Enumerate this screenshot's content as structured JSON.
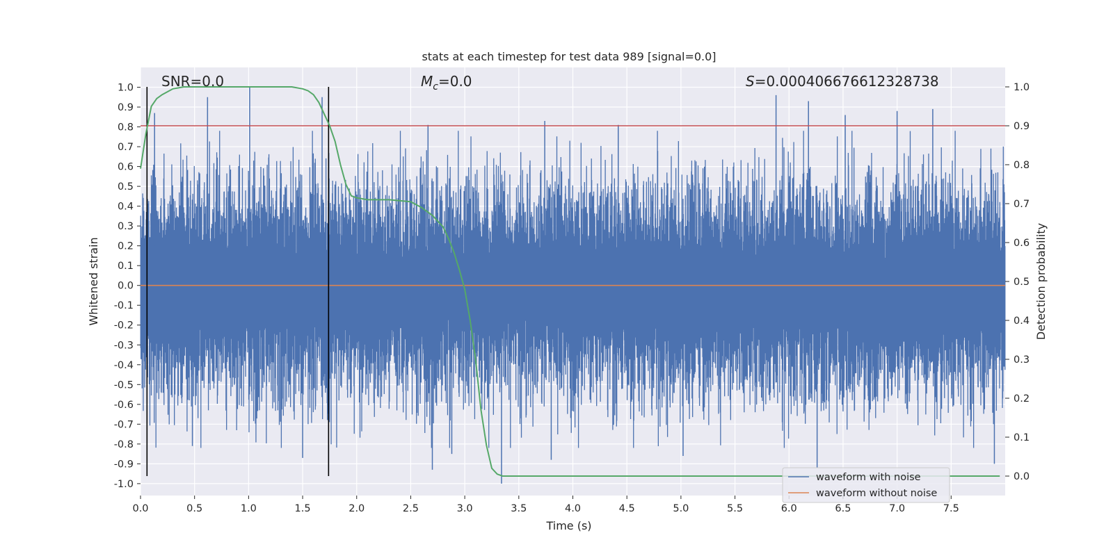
{
  "chart_data": {
    "type": "line",
    "title": "stats at each timestep for test data 989 [signal=0.0]",
    "xlabel": "Time (s)",
    "ylabel": "Whitened strain",
    "y2label": "Detection probability",
    "xlim": [
      0.0,
      8.0
    ],
    "ylim": [
      -1.06,
      1.1
    ],
    "y2lim": [
      -0.05,
      1.05
    ],
    "xticks": [
      "0.0",
      "0.5",
      "1.0",
      "1.5",
      "2.0",
      "2.5",
      "3.0",
      "3.5",
      "4.0",
      "4.5",
      "5.0",
      "5.5",
      "6.0",
      "6.5",
      "7.0",
      "7.5"
    ],
    "yticks": [
      "1.0",
      "0.9",
      "0.8",
      "0.7",
      "0.6",
      "0.5",
      "0.4",
      "0.3",
      "0.2",
      "0.1",
      "0.0",
      "-0.1",
      "-0.2",
      "-0.3",
      "-0.4",
      "-0.5",
      "-0.6",
      "-0.7",
      "-0.8",
      "-0.9",
      "-1.0"
    ],
    "y2ticks": [
      "1.0",
      "0.9",
      "0.8",
      "0.7",
      "0.6",
      "0.5",
      "0.4",
      "0.3",
      "0.2",
      "0.1",
      "0.0"
    ],
    "annotations": {
      "snr": "SNR=0.0",
      "mc_symbol": "M",
      "mc_sub": "c",
      "mc_value": "=0.0",
      "s_symbol": "S",
      "s_value": "=0.000406676612328738"
    },
    "threshold_y2": 0.9,
    "vertical_markers_x": [
      0.06,
      1.74
    ],
    "series": [
      {
        "name": "waveform with noise",
        "color": "#4c72b0",
        "peaks_max": [
          {
            "x": 0.62,
            "y": 0.95
          },
          {
            "x": 1.01,
            "y": 1.0
          },
          {
            "x": 1.68,
            "y": 0.95
          },
          {
            "x": 0.13,
            "y": 0.87
          },
          {
            "x": 2.66,
            "y": 0.81
          },
          {
            "x": 3.74,
            "y": 0.83
          },
          {
            "x": 4.42,
            "y": 0.81
          },
          {
            "x": 5.88,
            "y": 0.96
          },
          {
            "x": 6.18,
            "y": 0.93
          },
          {
            "x": 6.52,
            "y": 0.86
          },
          {
            "x": 7.0,
            "y": 0.88
          },
          {
            "x": 7.33,
            "y": 0.89
          }
        ],
        "peaks_min": [
          {
            "x": 0.48,
            "y": -0.81
          },
          {
            "x": 1.5,
            "y": -0.87
          },
          {
            "x": 2.7,
            "y": -0.93
          },
          {
            "x": 2.88,
            "y": -0.85
          },
          {
            "x": 3.34,
            "y": -1.0
          },
          {
            "x": 3.8,
            "y": -0.88
          },
          {
            "x": 5.02,
            "y": -0.86
          },
          {
            "x": 6.26,
            "y": -0.92
          },
          {
            "x": 7.9,
            "y": -0.9
          }
        ]
      },
      {
        "name": "waveform without noise",
        "color": "#dd8452",
        "x": [
          0.0,
          8.0
        ],
        "y": [
          0.0,
          0.0
        ]
      },
      {
        "name": "detection probability",
        "color": "#55a868",
        "axis": "y2",
        "x": [
          0.0,
          0.05,
          0.1,
          0.15,
          0.2,
          0.3,
          0.4,
          0.6,
          1.0,
          1.4,
          1.5,
          1.55,
          1.6,
          1.65,
          1.7,
          1.75,
          1.8,
          1.85,
          1.9,
          1.95,
          2.0,
          2.1,
          2.3,
          2.5,
          2.6,
          2.7,
          2.8,
          2.85,
          2.9,
          2.95,
          3.0,
          3.05,
          3.1,
          3.15,
          3.2,
          3.25,
          3.3,
          3.35,
          3.4,
          3.5,
          4.0,
          5.0,
          6.0,
          7.0,
          7.95
        ],
        "y": [
          0.79,
          0.88,
          0.95,
          0.97,
          0.98,
          0.995,
          1.0,
          1.0,
          1.0,
          1.0,
          0.995,
          0.99,
          0.98,
          0.96,
          0.93,
          0.9,
          0.86,
          0.8,
          0.75,
          0.72,
          0.715,
          0.71,
          0.71,
          0.705,
          0.69,
          0.67,
          0.64,
          0.61,
          0.575,
          0.53,
          0.48,
          0.4,
          0.3,
          0.17,
          0.08,
          0.02,
          0.005,
          0.0,
          0.0,
          0.0,
          0.0,
          0.0,
          0.0,
          0.0,
          0.0
        ]
      }
    ],
    "legend": {
      "position": "lower-right",
      "entries": [
        {
          "label": "waveform with noise",
          "color": "#4c72b0"
        },
        {
          "label": "waveform without noise",
          "color": "#dd8452"
        }
      ]
    },
    "style": {
      "plot_bg": "#eaeaf2",
      "grid": "#ffffff",
      "threshold_color": "#c44e52",
      "marker_color": "#000000"
    }
  }
}
